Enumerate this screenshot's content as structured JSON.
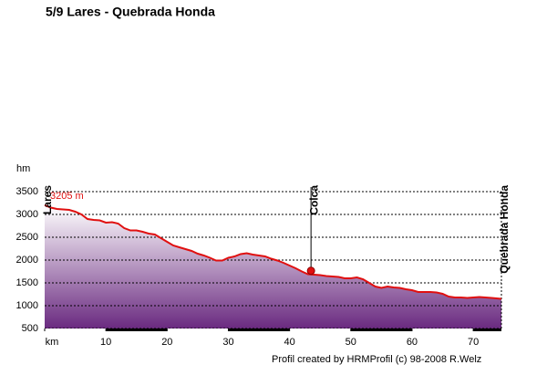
{
  "chart_data": {
    "type": "area",
    "title": "5/9 Lares - Quebrada Honda",
    "y_label": "hm",
    "footer": "Profil created by HRMProfil (c) 98-2008 R.Welz",
    "annotation": "3205 m",
    "color": "#e01010",
    "x": [
      0,
      1,
      2,
      4,
      5,
      6,
      7,
      8,
      9,
      10,
      11,
      12,
      13,
      14,
      15,
      16,
      17,
      18,
      19,
      20,
      21,
      22,
      24,
      25,
      26,
      27,
      28,
      29,
      30,
      31,
      32,
      33,
      34,
      35,
      36,
      37,
      38,
      39,
      40,
      41,
      42,
      43,
      44,
      45,
      46,
      47,
      48,
      49,
      50,
      51,
      52,
      53,
      54,
      55,
      56,
      57,
      58,
      59,
      60,
      61,
      62,
      63,
      64,
      65,
      66,
      67,
      68,
      69,
      70,
      71,
      72,
      73,
      74.6
    ],
    "values": [
      3205,
      3150,
      3120,
      3100,
      3060,
      3000,
      2900,
      2880,
      2870,
      2820,
      2830,
      2800,
      2700,
      2650,
      2650,
      2620,
      2580,
      2560,
      2480,
      2400,
      2320,
      2280,
      2200,
      2140,
      2100,
      2050,
      1990,
      1990,
      2050,
      2080,
      2130,
      2150,
      2120,
      2100,
      2080,
      2030,
      1990,
      1940,
      1880,
      1820,
      1750,
      1690,
      1680,
      1670,
      1650,
      1640,
      1630,
      1600,
      1600,
      1620,
      1580,
      1500,
      1420,
      1390,
      1420,
      1400,
      1390,
      1360,
      1340,
      1300,
      1300,
      1300,
      1290,
      1260,
      1200,
      1180,
      1180,
      1170,
      1180,
      1190,
      1180,
      1170,
      1150
    ],
    "waypoints": [
      {
        "label": "Lares",
        "x": 0
      },
      {
        "label": "Colca",
        "x": 43.5
      },
      {
        "label": "Quebrada Honda",
        "x": 74.6
      }
    ],
    "xlim": [
      0,
      74.6
    ],
    "xticks": [
      {
        "value": 0,
        "label": "km"
      },
      10,
      20,
      30,
      40,
      50,
      60,
      70
    ],
    "ylim": [
      500,
      3500
    ],
    "yticks": [
      500,
      1000,
      1500,
      2000,
      2500,
      3000,
      3500
    ],
    "grid": true
  }
}
